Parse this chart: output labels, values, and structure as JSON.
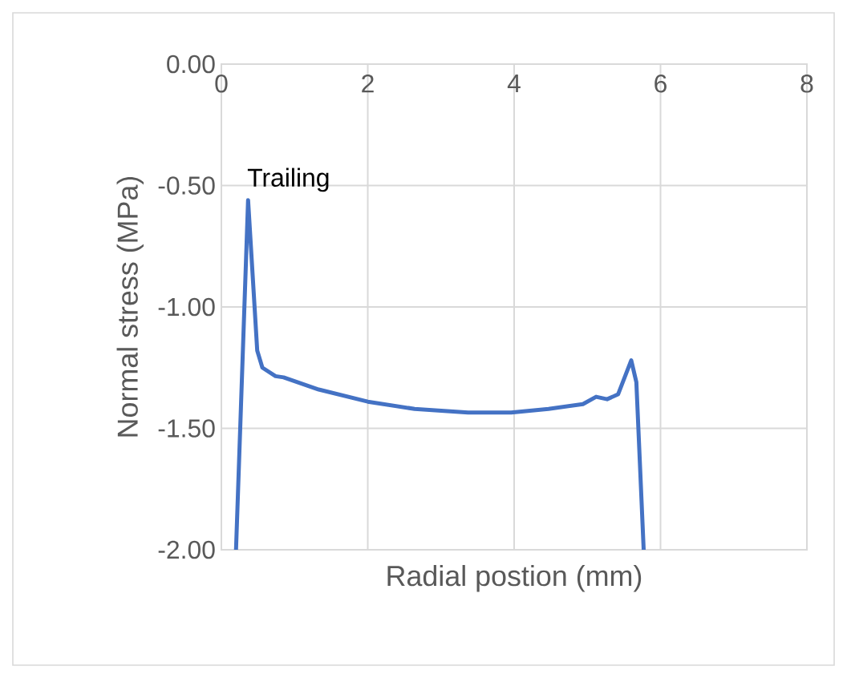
{
  "chart_data": {
    "type": "line",
    "xlabel": "Radial postion (mm)",
    "ylabel": "Normal stress (MPa)",
    "series": [
      {
        "color": "#4472c4",
        "x": [
          0.2,
          0.365,
          0.49,
          0.56,
          0.74,
          0.85,
          1.33,
          2.0,
          2.64,
          3.37,
          3.96,
          4.47,
          4.94,
          5.12,
          5.27,
          5.42,
          5.6,
          5.67,
          5.77
        ],
        "values": [
          -2.0,
          -0.56,
          -1.18,
          -1.25,
          -1.285,
          -1.29,
          -1.34,
          -1.39,
          -1.42,
          -1.435,
          -1.435,
          -1.42,
          -1.4,
          -1.37,
          -1.38,
          -1.36,
          -1.22,
          -1.31,
          -2.0
        ]
      }
    ],
    "xlim": [
      0,
      8
    ],
    "ylim": [
      -2,
      0
    ],
    "xticks": [
      0,
      2,
      4,
      6,
      8
    ],
    "yticks": [
      {
        "value": -2,
        "label": "-2.00"
      },
      {
        "value": -1.5,
        "label": "-1.50"
      },
      {
        "value": -1,
        "label": "-1.00"
      },
      {
        "value": -0.5,
        "label": "-0.50"
      },
      {
        "value": 0,
        "label": "0.00"
      }
    ],
    "grid": true,
    "annotations": [
      {
        "text": "Trailing",
        "x": 0.37,
        "y": -0.56
      }
    ]
  }
}
